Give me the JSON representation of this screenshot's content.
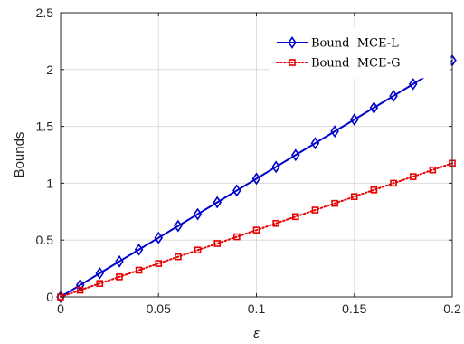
{
  "chart_data": {
    "type": "line",
    "xlabel": "ε",
    "ylabel": "Bounds",
    "xlim": [
      0,
      0.2
    ],
    "ylim": [
      0,
      2.5
    ],
    "xticks": [
      0,
      0.05,
      0.1,
      0.15,
      0.2
    ],
    "xtick_labels": [
      "0",
      "0.05",
      "0.1",
      "0.15",
      "0.2"
    ],
    "yticks": [
      0,
      0.5,
      1,
      1.5,
      2,
      2.5
    ],
    "ytick_labels": [
      "0",
      "0.5",
      "1",
      "1.5",
      "2",
      "2.5"
    ],
    "grid": true,
    "legend_position": "top-right",
    "x": [
      0,
      0.01,
      0.02,
      0.03,
      0.04,
      0.05,
      0.06,
      0.07,
      0.08,
      0.09,
      0.1,
      0.11,
      0.12,
      0.13,
      0.14,
      0.15,
      0.16,
      0.17,
      0.18,
      0.19,
      0.2
    ],
    "series": [
      {
        "name": "Bound  MCE-L",
        "color": "#0000cc",
        "marker": "diamond",
        "line_style": "solid",
        "values": [
          0,
          0.104,
          0.208,
          0.312,
          0.416,
          0.52,
          0.624,
          0.728,
          0.832,
          0.936,
          1.04,
          1.144,
          1.248,
          1.352,
          1.456,
          1.56,
          1.664,
          1.768,
          1.872,
          1.976,
          2.08
        ]
      },
      {
        "name": "Bound  MCE-G",
        "color": "#e60000",
        "marker": "square",
        "line_style": "dotted",
        "values": [
          0,
          0.059,
          0.118,
          0.176,
          0.235,
          0.294,
          0.353,
          0.412,
          0.47,
          0.529,
          0.588,
          0.647,
          0.706,
          0.764,
          0.823,
          0.882,
          0.941,
          1.0,
          1.058,
          1.117,
          1.176
        ]
      }
    ]
  }
}
